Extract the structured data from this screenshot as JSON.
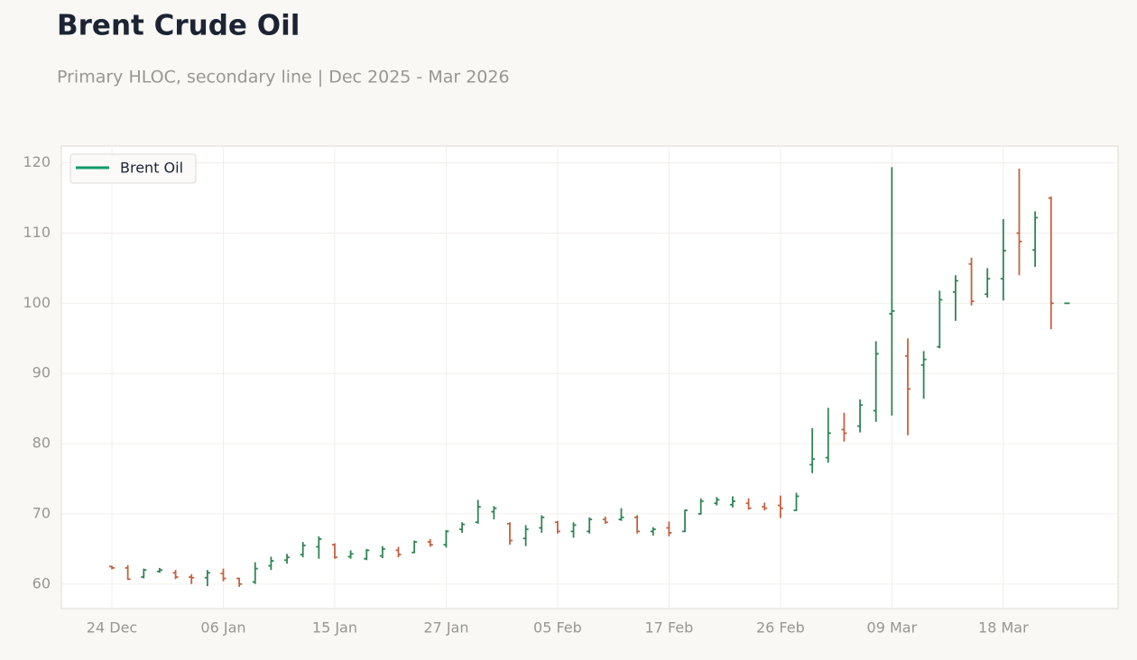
{
  "chart_data": {
    "type": "ohlc",
    "title": "Brent Crude Oil",
    "subtitle": "Primary HLOC, secondary line | Dec 2025 - Mar 2026",
    "categories": [
      "24 Dec",
      null,
      null,
      null,
      null,
      null,
      null,
      "06 Jan",
      null,
      null,
      null,
      null,
      null,
      null,
      "15 Jan",
      null,
      null,
      null,
      null,
      null,
      null,
      "27 Jan",
      null,
      null,
      null,
      null,
      null,
      null,
      "05 Feb",
      null,
      null,
      null,
      null,
      null,
      null,
      "17 Feb",
      null,
      null,
      null,
      null,
      null,
      null,
      "26 Feb",
      null,
      null,
      null,
      null,
      null,
      null,
      "09 Mar",
      null,
      null,
      null,
      null,
      null,
      null,
      "18 Mar",
      null,
      null,
      null,
      null
    ],
    "up_color": "#2e8555",
    "down_color": "#c4623d",
    "grid": true,
    "legend": "upper left",
    "ylim": [
      56.5,
      122.4
    ],
    "yticks": [
      60,
      70,
      80,
      90,
      100,
      110,
      120
    ],
    "series": [
      {
        "name": "Brent Oil",
        "color": "#109a68",
        "open": [
          62.5,
          62.3,
          61.0,
          61.8,
          61.6,
          61.0,
          60.9,
          61.5,
          60.8,
          60.3,
          62.6,
          63.4,
          64.2,
          65.3,
          65.6,
          63.9,
          63.6,
          64.0,
          64.8,
          64.5,
          66.0,
          65.6,
          67.8,
          68.8,
          70.3,
          68.6,
          66.5,
          68.0,
          68.8,
          67.5,
          67.5,
          69.2,
          69.2,
          69.5,
          67.5,
          68.0,
          67.5,
          70.0,
          71.5,
          71.3,
          71.5,
          71.0,
          71.2,
          70.5,
          77.0,
          78.0,
          82.0,
          82.5,
          84.7,
          98.5,
          92.5,
          91.2,
          93.8,
          101.6,
          105.6,
          101.3,
          103.5,
          110.0,
          107.6,
          115.0,
          100.0
        ],
        "high": [
          62.6,
          62.7,
          62.2,
          62.3,
          62.0,
          61.4,
          62.0,
          62.2,
          60.9,
          63.1,
          63.9,
          64.3,
          66.0,
          66.8,
          65.8,
          64.8,
          65.0,
          65.4,
          65.3,
          66.2,
          66.4,
          67.7,
          68.8,
          72.0,
          71.1,
          68.8,
          68.4,
          69.8,
          69.0,
          68.8,
          69.5,
          69.6,
          70.8,
          69.8,
          68.1,
          68.9,
          70.6,
          72.2,
          72.4,
          72.5,
          72.2,
          71.6,
          72.6,
          73.0,
          82.2,
          85.1,
          84.4,
          86.3,
          94.6,
          119.4,
          95.0,
          93.2,
          101.8,
          104.0,
          106.5,
          105.0,
          112.0,
          119.2,
          113.1,
          115.2,
          100.0
        ],
        "low": [
          62.1,
          60.6,
          60.8,
          61.6,
          60.7,
          60.0,
          59.7,
          60.4,
          59.6,
          60.0,
          62.0,
          62.9,
          63.8,
          63.6,
          63.6,
          63.6,
          63.4,
          63.7,
          63.8,
          64.4,
          65.3,
          65.2,
          67.3,
          68.6,
          69.2,
          65.6,
          65.4,
          67.3,
          67.2,
          66.6,
          67.2,
          68.6,
          69.0,
          67.2,
          66.9,
          66.8,
          67.4,
          69.9,
          71.2,
          70.9,
          70.6,
          70.5,
          69.4,
          70.4,
          75.8,
          77.3,
          80.3,
          81.6,
          83.1,
          84.0,
          81.2,
          86.4,
          93.6,
          97.5,
          99.7,
          100.8,
          100.4,
          104.0,
          105.2,
          96.3,
          100.0
        ],
        "close": [
          62.3,
          60.7,
          62.0,
          62.0,
          61.0,
          60.9,
          61.6,
          60.8,
          60.0,
          62.2,
          63.3,
          63.8,
          65.5,
          66.4,
          63.8,
          64.3,
          64.8,
          65.0,
          64.2,
          66.0,
          65.6,
          67.5,
          68.5,
          71.0,
          70.8,
          66.2,
          67.8,
          69.5,
          67.5,
          68.4,
          69.2,
          68.8,
          69.5,
          67.5,
          67.8,
          67.3,
          70.5,
          71.8,
          72.0,
          71.8,
          70.8,
          70.8,
          70.8,
          72.5,
          77.8,
          81.5,
          81.5,
          85.5,
          92.8,
          98.9,
          87.8,
          92.0,
          100.5,
          103.2,
          100.3,
          103.5,
          107.5,
          108.8,
          112.2,
          100.0,
          100.0
        ]
      }
    ]
  }
}
